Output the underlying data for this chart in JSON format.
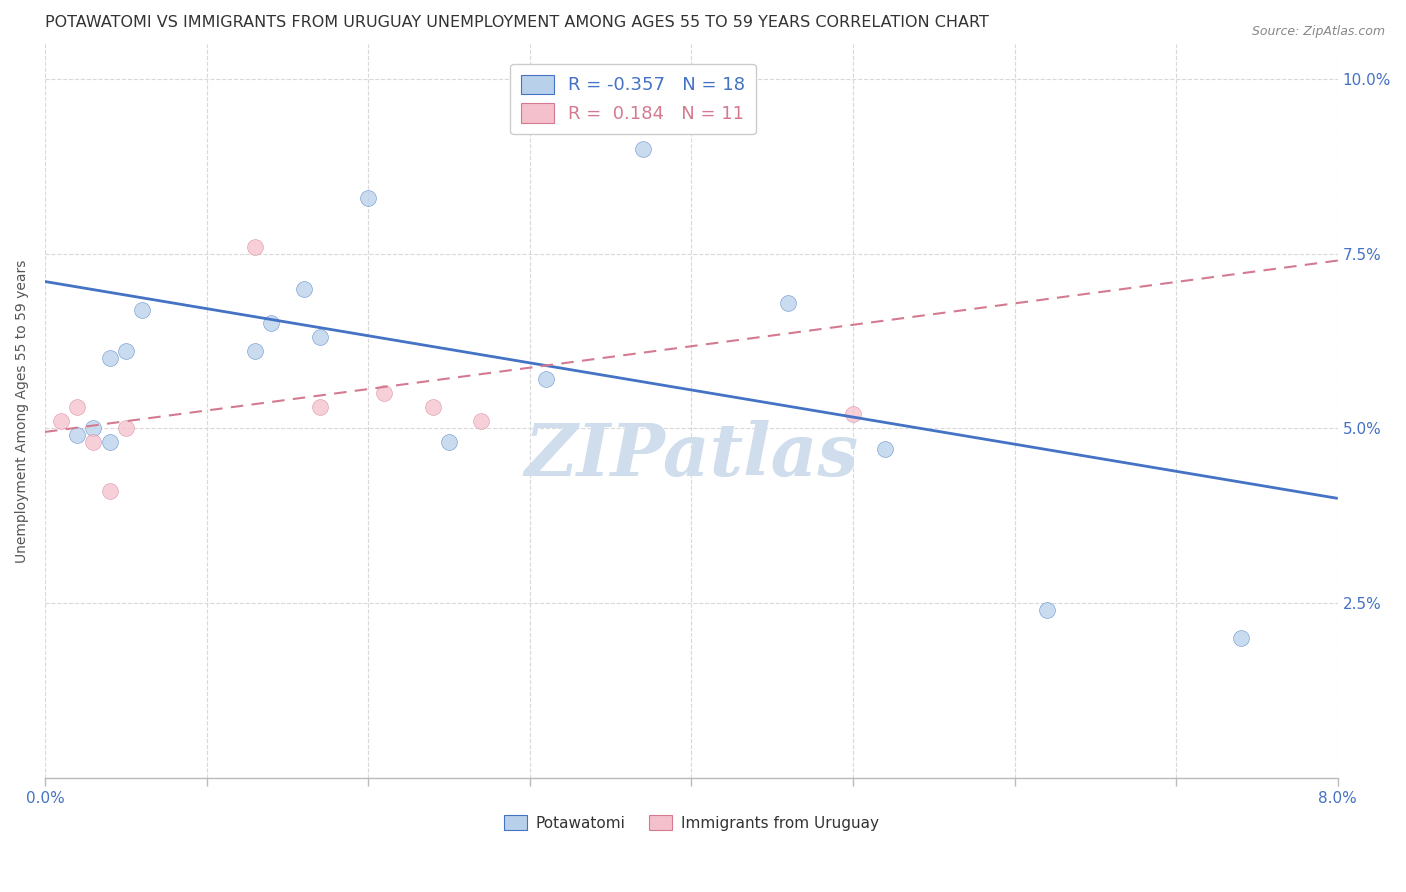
{
  "title": "POTAWATOMI VS IMMIGRANTS FROM URUGUAY UNEMPLOYMENT AMONG AGES 55 TO 59 YEARS CORRELATION CHART",
  "source": "Source: ZipAtlas.com",
  "ylabel": "Unemployment Among Ages 55 to 59 years",
  "xlim": [
    0.0,
    0.08
  ],
  "ylim": [
    0.0,
    0.105
  ],
  "xticks": [
    0.0,
    0.01,
    0.02,
    0.03,
    0.04,
    0.05,
    0.06,
    0.07,
    0.08
  ],
  "yticks": [
    0.0,
    0.025,
    0.05,
    0.075,
    0.1
  ],
  "ytick_labels": [
    "",
    "2.5%",
    "5.0%",
    "7.5%",
    "10.0%"
  ],
  "xtick_labels": [
    "0.0%",
    "",
    "",
    "",
    "",
    "",
    "",
    "",
    "8.0%"
  ],
  "blue_scatter_x": [
    0.002,
    0.003,
    0.004,
    0.004,
    0.005,
    0.006,
    0.013,
    0.014,
    0.016,
    0.017,
    0.02,
    0.025,
    0.031,
    0.037,
    0.046,
    0.052,
    0.062,
    0.074
  ],
  "blue_scatter_y": [
    0.049,
    0.05,
    0.048,
    0.06,
    0.061,
    0.067,
    0.061,
    0.065,
    0.07,
    0.063,
    0.083,
    0.048,
    0.057,
    0.09,
    0.068,
    0.047,
    0.024,
    0.02
  ],
  "pink_scatter_x": [
    0.001,
    0.002,
    0.003,
    0.004,
    0.005,
    0.013,
    0.017,
    0.021,
    0.024,
    0.027,
    0.05
  ],
  "pink_scatter_y": [
    0.051,
    0.053,
    0.048,
    0.041,
    0.05,
    0.076,
    0.053,
    0.055,
    0.053,
    0.051,
    0.052
  ],
  "blue_R": -0.357,
  "blue_N": 18,
  "pink_R": 0.184,
  "pink_N": 11,
  "blue_color": "#b8d0ea",
  "blue_line_color": "#4472c4",
  "pink_color": "#f4c0cb",
  "pink_line_color": "#d47a90",
  "marker_size": 130,
  "title_fontsize": 11.5,
  "axis_label_fontsize": 10,
  "tick_fontsize": 11,
  "legend_fontsize": 13,
  "watermark": "ZIPatlas",
  "watermark_color": "#cfdded",
  "background_color": "#ffffff",
  "grid_color": "#d8d8d8",
  "blue_line_start_y": 0.071,
  "blue_line_end_y": 0.04,
  "pink_line_start_y": 0.0495,
  "pink_line_end_y": 0.074
}
